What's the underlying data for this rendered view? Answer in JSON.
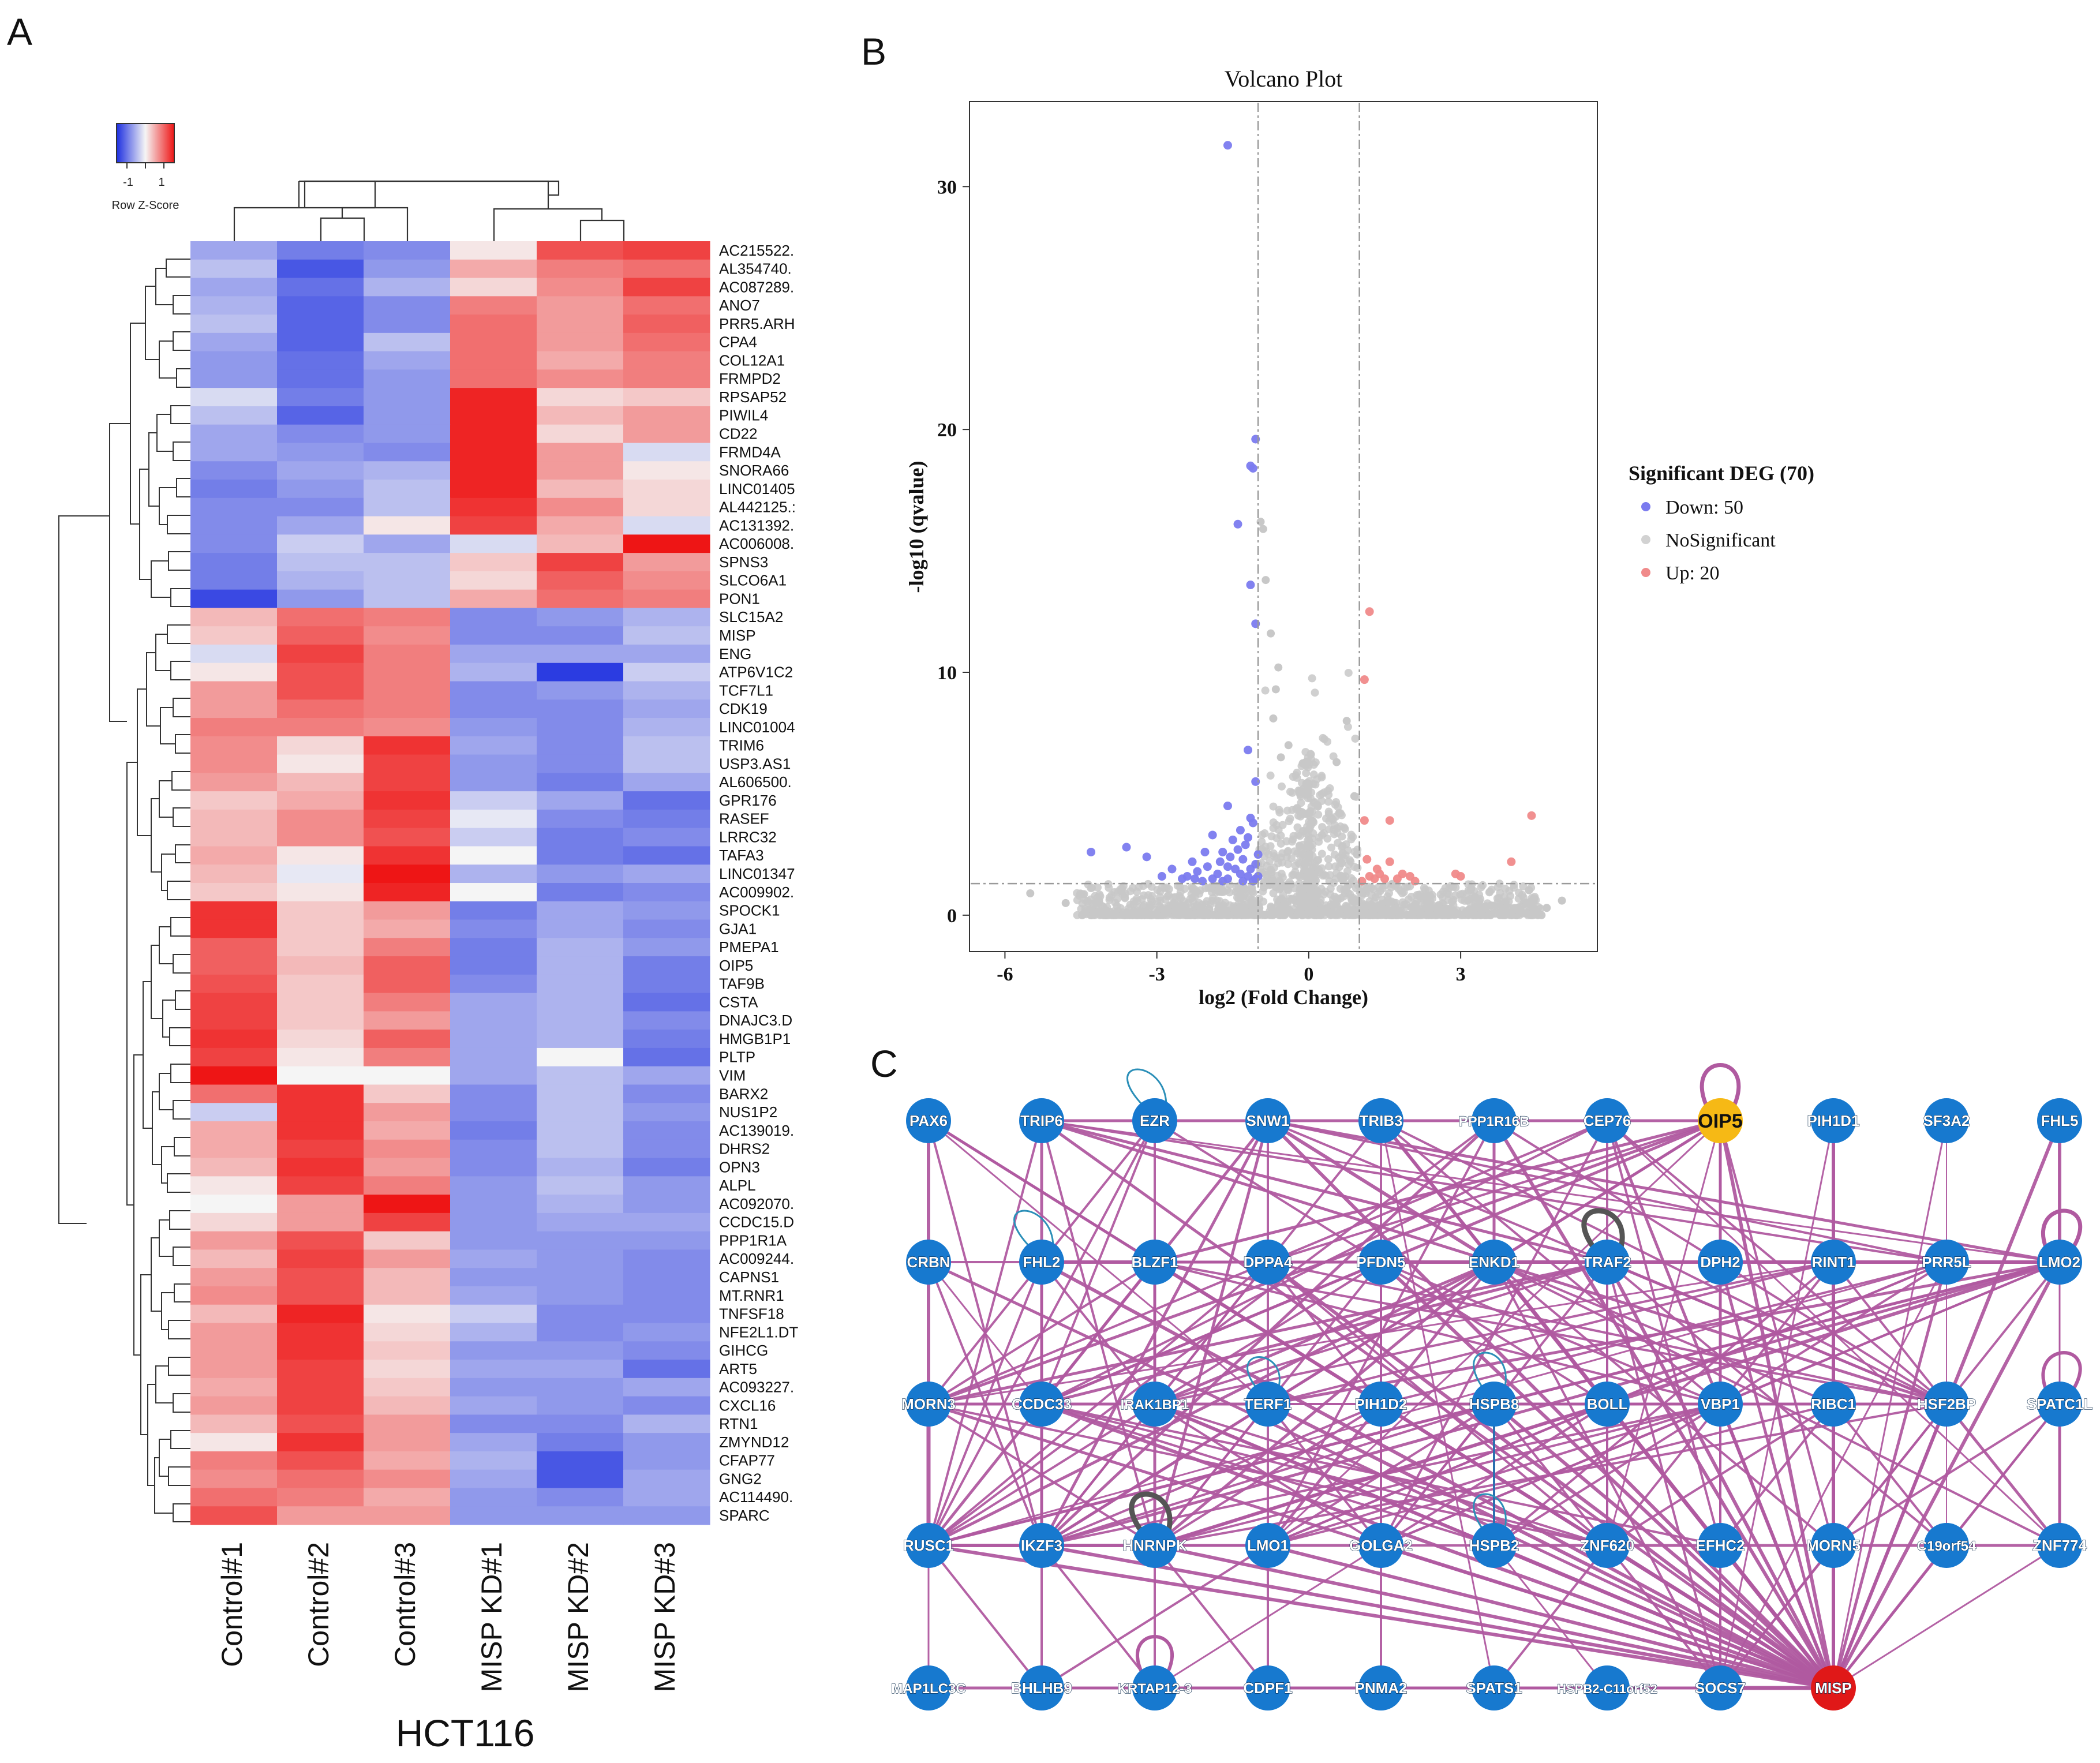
{
  "panels": {
    "a_label": "A",
    "b_label": "B",
    "c_label": "C"
  },
  "chart_data": [
    {
      "type": "heatmap",
      "title": "HCT116",
      "legend": {
        "title": "Row Z-Score",
        "ticks": [
          "-1",
          "1"
        ],
        "low_color": "#1d2fe0",
        "mid_color": "#f5f5f5",
        "high_color": "#ee1515"
      },
      "columns": [
        "Control#1",
        "Control#2",
        "Control#3",
        "MISP KD#1",
        "MISP KD#2",
        "MISP KD#3"
      ],
      "rows": [
        "AC215522.",
        "AL354740.",
        "AC087289.",
        "ANO7",
        "PRR5.ARH",
        "CPA4",
        "COL12A1",
        "FRMPD2",
        "RPSAP52",
        "PIWIL4",
        "CD22",
        "FRMD4A",
        "SNORA66",
        "LINC01405",
        "AL442125.:",
        "AC131392.",
        "AC006008.",
        "SPNS3",
        "SLCO6A1",
        "PON1",
        "SLC15A2",
        "MISP",
        "ENG",
        "ATP6V1C2",
        "TCF7L1",
        "CDK19",
        "LINC01004",
        "TRIM6",
        "USP3.AS1",
        "AL606500.",
        "GPR176",
        "RASEF",
        "LRRC32",
        "TAFA3",
        "LINC01347",
        "AC009902.",
        "SPOCK1",
        "GJA1",
        "PMEPA1",
        "OIP5",
        "TAF9B",
        "CSTA",
        "DNAJC3.D",
        "HMGB1P1",
        "PLTP",
        "VIM",
        "BARX2",
        "NUS1P2",
        "AC139019.",
        "DHRS2",
        "OPN3",
        "ALPL",
        "AC092070.",
        "CCDC15.D",
        "PPP1R1A",
        "AC009244.",
        "CAPNS1",
        "MT.RNR1",
        "TNFSF18",
        "NFE2L1.DT",
        "GIHCG",
        "ART5",
        "AC093227.",
        "CXCL16",
        "RTN1",
        "ZMYND12",
        "CFAP77",
        "GNG2",
        "AC114490.",
        "SPARC"
      ],
      "values": [
        [
          -0.6,
          -0.9,
          -0.8,
          0.1,
          1.1,
          1.2
        ],
        [
          -0.4,
          -1.2,
          -0.7,
          0.5,
          0.8,
          0.9
        ],
        [
          -0.6,
          -1.0,
          -0.5,
          0.2,
          0.7,
          1.2
        ],
        [
          -0.5,
          -1.1,
          -0.8,
          0.8,
          0.6,
          0.9
        ],
        [
          -0.4,
          -1.1,
          -0.8,
          0.9,
          0.6,
          1.0
        ],
        [
          -0.6,
          -1.1,
          -0.4,
          0.9,
          0.6,
          0.9
        ],
        [
          -0.7,
          -1.0,
          -0.6,
          0.9,
          0.5,
          0.8
        ],
        [
          -0.7,
          -1.0,
          -0.7,
          0.9,
          0.7,
          0.8
        ],
        [
          -0.2,
          -0.9,
          -0.7,
          1.4,
          0.2,
          0.3
        ],
        [
          -0.4,
          -1.1,
          -0.7,
          1.4,
          0.4,
          0.6
        ],
        [
          -0.6,
          -0.8,
          -0.7,
          1.4,
          0.2,
          0.6
        ],
        [
          -0.6,
          -0.7,
          -0.8,
          1.4,
          0.6,
          -0.2
        ],
        [
          -0.8,
          -0.6,
          -0.5,
          1.4,
          0.6,
          0.1
        ],
        [
          -0.9,
          -0.7,
          -0.4,
          1.4,
          0.4,
          0.2
        ],
        [
          -0.8,
          -0.8,
          -0.4,
          1.3,
          0.7,
          0.2
        ],
        [
          -0.8,
          -0.6,
          0.1,
          1.2,
          0.5,
          -0.2
        ],
        [
          -0.8,
          -0.3,
          -0.6,
          -0.2,
          0.4,
          1.5
        ],
        [
          -0.9,
          -0.4,
          -0.4,
          0.3,
          1.2,
          0.6
        ],
        [
          -0.9,
          -0.5,
          -0.4,
          0.2,
          1.0,
          0.7
        ],
        [
          -1.3,
          -0.7,
          -0.4,
          0.5,
          0.9,
          0.8
        ],
        [
          0.4,
          0.9,
          0.8,
          -0.8,
          -0.7,
          -0.5
        ],
        [
          0.3,
          1.0,
          0.7,
          -0.8,
          -0.8,
          -0.4
        ],
        [
          -0.2,
          1.2,
          0.8,
          -0.6,
          -0.6,
          -0.6
        ],
        [
          0.1,
          1.1,
          0.8,
          -0.5,
          -1.4,
          -0.3
        ],
        [
          0.6,
          1.1,
          0.8,
          -0.8,
          -0.7,
          -0.5
        ],
        [
          0.6,
          0.9,
          0.8,
          -0.8,
          -0.8,
          -0.6
        ],
        [
          0.8,
          0.8,
          0.7,
          -0.7,
          -0.8,
          -0.5
        ],
        [
          0.7,
          0.2,
          1.3,
          -0.6,
          -0.8,
          -0.4
        ],
        [
          0.7,
          0.1,
          1.2,
          -0.7,
          -0.8,
          -0.4
        ],
        [
          0.6,
          0.4,
          1.2,
          -0.7,
          -0.9,
          -0.6
        ],
        [
          0.3,
          0.5,
          1.3,
          -0.3,
          -0.6,
          -1.0
        ],
        [
          0.4,
          0.7,
          1.2,
          -0.1,
          -0.8,
          -0.9
        ],
        [
          0.4,
          0.7,
          1.1,
          -0.3,
          -0.9,
          -0.8
        ],
        [
          0.5,
          0.1,
          1.3,
          0.0,
          -0.9,
          -1.0
        ],
        [
          0.4,
          -0.1,
          1.5,
          -0.5,
          -0.7,
          -0.6
        ],
        [
          0.3,
          0.1,
          1.4,
          0.0,
          -0.9,
          -0.8
        ],
        [
          1.3,
          0.3,
          0.6,
          -0.9,
          -0.6,
          -0.7
        ],
        [
          1.3,
          0.3,
          0.5,
          -0.8,
          -0.6,
          -0.8
        ],
        [
          1.0,
          0.3,
          0.8,
          -0.9,
          -0.5,
          -0.7
        ],
        [
          1.0,
          0.4,
          1.0,
          -0.9,
          -0.5,
          -0.9
        ],
        [
          1.1,
          0.3,
          1.0,
          -0.8,
          -0.5,
          -0.9
        ],
        [
          1.2,
          0.3,
          0.8,
          -0.6,
          -0.5,
          -1.0
        ],
        [
          1.2,
          0.3,
          0.6,
          -0.6,
          -0.5,
          -0.8
        ],
        [
          1.3,
          0.2,
          1.0,
          -0.6,
          -0.5,
          -0.9
        ],
        [
          1.2,
          0.1,
          0.8,
          -0.6,
          0.0,
          -1.0
        ],
        [
          1.5,
          0.0,
          0.0,
          -0.6,
          -0.4,
          -0.6
        ],
        [
          0.9,
          1.3,
          0.3,
          -0.8,
          -0.4,
          -0.8
        ],
        [
          -0.3,
          1.3,
          0.6,
          -0.8,
          -0.4,
          -0.7
        ],
        [
          0.5,
          1.3,
          0.5,
          -0.9,
          -0.4,
          -0.8
        ],
        [
          0.5,
          1.2,
          0.7,
          -0.8,
          -0.4,
          -0.8
        ],
        [
          0.4,
          1.3,
          0.6,
          -0.8,
          -0.5,
          -0.9
        ],
        [
          0.1,
          1.2,
          0.8,
          -0.7,
          -0.4,
          -0.7
        ],
        [
          0.0,
          0.6,
          1.5,
          -0.7,
          -0.5,
          -0.7
        ],
        [
          0.2,
          0.6,
          1.2,
          -0.7,
          -0.6,
          -0.6
        ],
        [
          0.6,
          1.1,
          0.3,
          -0.7,
          -0.7,
          -0.7
        ],
        [
          0.4,
          1.2,
          0.6,
          -0.6,
          -0.7,
          -0.8
        ],
        [
          0.6,
          1.1,
          0.4,
          -0.7,
          -0.7,
          -0.8
        ],
        [
          0.7,
          1.1,
          0.4,
          -0.6,
          -0.7,
          -0.8
        ],
        [
          0.4,
          1.4,
          0.1,
          -0.3,
          -0.8,
          -0.8
        ],
        [
          0.6,
          1.3,
          0.2,
          -0.5,
          -0.8,
          -0.7
        ],
        [
          0.6,
          1.3,
          0.3,
          -0.7,
          -0.7,
          -0.8
        ],
        [
          0.6,
          1.2,
          0.2,
          -0.6,
          -0.6,
          -1.0
        ],
        [
          0.5,
          1.2,
          0.3,
          -0.7,
          -0.7,
          -0.6
        ],
        [
          0.6,
          1.2,
          0.4,
          -0.6,
          -0.7,
          -0.8
        ],
        [
          0.4,
          1.1,
          0.6,
          -0.8,
          -0.8,
          -0.5
        ],
        [
          0.1,
          1.3,
          0.6,
          -0.6,
          -0.9,
          -0.7
        ],
        [
          0.8,
          1.1,
          0.5,
          -0.5,
          -1.2,
          -0.7
        ],
        [
          0.7,
          0.9,
          0.7,
          -0.6,
          -1.2,
          -0.6
        ],
        [
          0.9,
          0.8,
          0.5,
          -0.7,
          -0.8,
          -0.6
        ],
        [
          1.1,
          0.6,
          0.6,
          -0.7,
          -0.7,
          -0.7
        ]
      ]
    },
    {
      "type": "scatter",
      "title": "Volcano Plot",
      "xlabel": "log2 (Fold Change)",
      "ylabel": "-log10 (qvalue)",
      "xlim": [
        -6.7,
        5.7
      ],
      "ylim": [
        -1.5,
        33.5
      ],
      "xticks": [
        "-6",
        "-3",
        "0",
        "3"
      ],
      "yticks": [
        "0",
        "10",
        "20",
        "30"
      ],
      "thresholds": {
        "x": [
          -1,
          1
        ],
        "y": 1.3
      },
      "legend": {
        "title": "Significant DEG (70)",
        "entries": [
          {
            "label": "Down: 50",
            "color": "#7b7bef"
          },
          {
            "label": "NoSignificant",
            "color": "#d2d2d2"
          },
          {
            "label": "Up: 20",
            "color": "#f08a8a"
          }
        ]
      },
      "series": [
        {
          "name": "Down: 50",
          "points": [
            [
              -1.6,
              31.7
            ],
            [
              -1.05,
              19.6
            ],
            [
              -1.15,
              18.5
            ],
            [
              -1.1,
              18.4
            ],
            [
              -1.4,
              16.1
            ],
            [
              -1.15,
              13.6
            ],
            [
              -1.05,
              12.0
            ],
            [
              -1.2,
              6.8
            ],
            [
              -1.6,
              4.5
            ],
            [
              -1.35,
              3.5
            ],
            [
              -1.1,
              3.8
            ],
            [
              -1.9,
              3.3
            ],
            [
              -1.5,
              3.1
            ],
            [
              -3.6,
              2.8
            ],
            [
              -4.3,
              2.6
            ],
            [
              -3.2,
              2.4
            ],
            [
              -2.3,
              2.2
            ],
            [
              -2.0,
              2.0
            ],
            [
              -2.2,
              1.8
            ],
            [
              -2.5,
              1.5
            ],
            [
              -1.7,
              2.6
            ],
            [
              -1.3,
              2.3
            ],
            [
              -1.2,
              1.6
            ],
            [
              -1.05,
              2.1
            ],
            [
              -1.8,
              1.7
            ],
            [
              -2.1,
              1.4
            ],
            [
              -1.6,
              1.5
            ],
            [
              -1.1,
              1.4
            ],
            [
              -1.45,
              1.9
            ],
            [
              -2.4,
              1.6
            ],
            [
              -1.25,
              2.9
            ],
            [
              -1.05,
              5.5
            ],
            [
              -1.15,
              4.0
            ],
            [
              -2.7,
              1.9
            ],
            [
              -2.9,
              1.6
            ],
            [
              -1.35,
              1.7
            ],
            [
              -1.75,
              2.2
            ],
            [
              -1.0,
              2.5
            ],
            [
              -1.55,
              2.4
            ],
            [
              -2.05,
              2.6
            ],
            [
              -1.3,
              1.4
            ],
            [
              -1.0,
              1.6
            ],
            [
              -1.7,
              1.4
            ],
            [
              -1.15,
              1.9
            ],
            [
              -2.25,
              1.5
            ],
            [
              -1.9,
              1.5
            ],
            [
              -1.4,
              2.7
            ],
            [
              -1.2,
              3.2
            ],
            [
              -1.6,
              2.0
            ],
            [
              -1.05,
              1.5
            ]
          ]
        },
        {
          "name": "Up: 20",
          "points": [
            [
              1.2,
              12.5
            ],
            [
              1.1,
              9.7
            ],
            [
              1.1,
              3.9
            ],
            [
              1.6,
              3.9
            ],
            [
              4.4,
              4.1
            ],
            [
              1.15,
              2.3
            ],
            [
              1.6,
              2.2
            ],
            [
              4.0,
              2.2
            ],
            [
              1.2,
              1.6
            ],
            [
              1.4,
              1.7
            ],
            [
              1.75,
              1.5
            ],
            [
              2.0,
              1.6
            ],
            [
              2.1,
              1.4
            ],
            [
              2.9,
              1.7
            ],
            [
              3.0,
              1.6
            ],
            [
              1.05,
              1.4
            ],
            [
              1.3,
              1.5
            ],
            [
              1.5,
              1.5
            ],
            [
              1.85,
              1.7
            ],
            [
              1.35,
              1.9
            ]
          ]
        }
      ]
    },
    {
      "type": "network",
      "edge_color": "#b05aa0",
      "node_color": "#1779cf",
      "nodes": [
        {
          "id": "PAX6"
        },
        {
          "id": "TRIP6"
        },
        {
          "id": "EZR"
        },
        {
          "id": "SNW1"
        },
        {
          "id": "TRIB3"
        },
        {
          "id": "PPP1R16B"
        },
        {
          "id": "CEP76"
        },
        {
          "id": "OIP5",
          "color": "#f6b915"
        },
        {
          "id": "PIH1D1"
        },
        {
          "id": "SF3A2"
        },
        {
          "id": "FHL5"
        },
        {
          "id": "CRBN"
        },
        {
          "id": "FHL2"
        },
        {
          "id": "BLZF1"
        },
        {
          "id": "DPPA4"
        },
        {
          "id": "PFDN5"
        },
        {
          "id": "ENKD1"
        },
        {
          "id": "TRAF2"
        },
        {
          "id": "DPH2"
        },
        {
          "id": "RINT1"
        },
        {
          "id": "PRR5L"
        },
        {
          "id": "LMO2"
        },
        {
          "id": "MORN3"
        },
        {
          "id": "CCDC33"
        },
        {
          "id": "IRAK1BP1"
        },
        {
          "id": "TERF1"
        },
        {
          "id": "PIH1D2"
        },
        {
          "id": "HSPB8"
        },
        {
          "id": "BOLL"
        },
        {
          "id": "VBP1"
        },
        {
          "id": "RIBC1"
        },
        {
          "id": "HSF2BP"
        },
        {
          "id": "SPATC1L"
        },
        {
          "id": "RUSC1"
        },
        {
          "id": "IKZF3"
        },
        {
          "id": "HNRNPK"
        },
        {
          "id": "LMO1"
        },
        {
          "id": "GOLGA2"
        },
        {
          "id": "HSPB2"
        },
        {
          "id": "ZNF620"
        },
        {
          "id": "EFHC2"
        },
        {
          "id": "MORN5"
        },
        {
          "id": "C19orf54"
        },
        {
          "id": "ZNF774"
        },
        {
          "id": "MAP1LC3C"
        },
        {
          "id": "BHLHB9"
        },
        {
          "id": "KRTAP12-3"
        },
        {
          "id": "CDPF1"
        },
        {
          "id": "PNMA2"
        },
        {
          "id": "SPATS1"
        },
        {
          "id": "HSPB2-C11orf52"
        },
        {
          "id": "SOCS7"
        },
        {
          "id": "MISP",
          "color": "#e01818"
        }
      ]
    }
  ]
}
